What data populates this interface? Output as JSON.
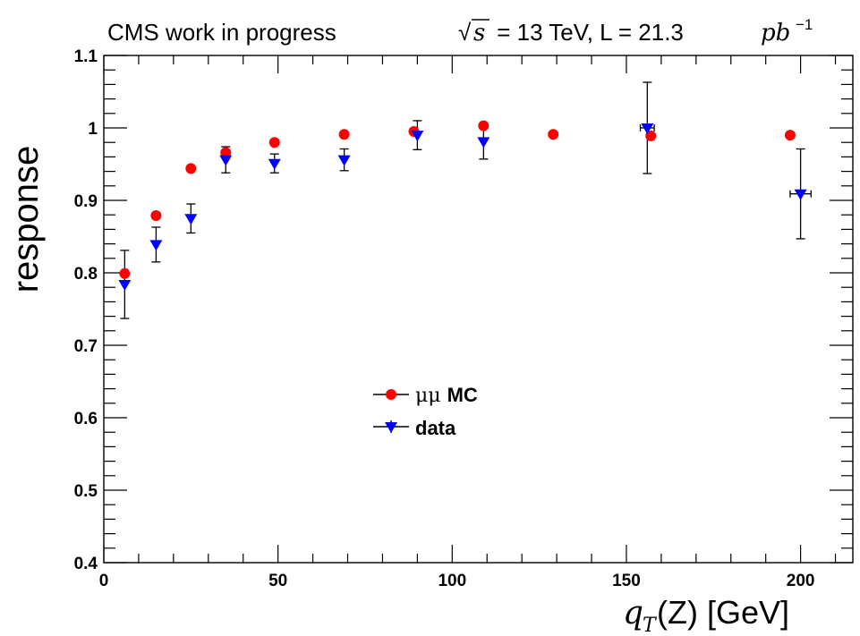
{
  "header": {
    "left_text": "CMS work in progress",
    "sqrt_symbol": "√",
    "s_symbol": "s",
    "eq_part": " = 13 TeV, L = 21.3 ",
    "pb": "pb",
    "pb_exp": "−1"
  },
  "colors": {
    "mc": "#ff0000",
    "data": "#0000ff",
    "axis": "#000000",
    "error": "#000000"
  },
  "chart_data": {
    "type": "scatter",
    "xlabel_math": "q",
    "xlabel_sub": "T",
    "xlabel_rest": "(Z) [GeV]",
    "ylabel": "response",
    "xlim": [
      0,
      215
    ],
    "ylim": [
      0.4,
      1.1
    ],
    "x_ticks": [
      0,
      50,
      100,
      150,
      200
    ],
    "y_ticks": [
      0.4,
      0.5,
      0.6,
      0.7,
      0.8,
      0.9,
      1,
      1.1
    ],
    "x_tick_labels": [
      "0",
      "50",
      "100",
      "150",
      "200"
    ],
    "y_tick_labels": [
      "0.4",
      "0.5",
      "0.6",
      "0.7",
      "0.8",
      "0.9",
      "1",
      "1.1"
    ],
    "legend_placement": "center",
    "series": [
      {
        "name": "μμ MC",
        "name_prefix": "μμ ",
        "name_suffix": "MC",
        "marker": "circle",
        "points": [
          {
            "x": 6,
            "y": 0.799
          },
          {
            "x": 15,
            "y": 0.879
          },
          {
            "x": 25,
            "y": 0.944
          },
          {
            "x": 35,
            "y": 0.966
          },
          {
            "x": 49,
            "y": 0.98
          },
          {
            "x": 69,
            "y": 0.991
          },
          {
            "x": 89,
            "y": 0.995
          },
          {
            "x": 109,
            "y": 1.003
          },
          {
            "x": 129,
            "y": 0.991
          },
          {
            "x": 157,
            "y": 0.989
          },
          {
            "x": 197,
            "y": 0.99
          }
        ]
      },
      {
        "name": "data",
        "marker": "triangle-down",
        "points": [
          {
            "x": 6,
            "y": 0.784,
            "yerr": 0.047
          },
          {
            "x": 15,
            "y": 0.839,
            "yerr": 0.024
          },
          {
            "x": 25,
            "y": 0.875,
            "yerr": 0.02
          },
          {
            "x": 35,
            "y": 0.956,
            "yerr": 0.018
          },
          {
            "x": 49,
            "y": 0.951,
            "yerr": 0.013
          },
          {
            "x": 69,
            "y": 0.956,
            "yerr": 0.015
          },
          {
            "x": 90,
            "y": 0.99,
            "yerr": 0.02
          },
          {
            "x": 109,
            "y": 0.981,
            "yerr": 0.024
          },
          {
            "x": 156,
            "y": 1.0,
            "yerr": 0.063,
            "xerr": 2
          },
          {
            "x": 200,
            "y": 0.909,
            "yerr": 0.062,
            "xerr": 3
          }
        ]
      }
    ]
  }
}
